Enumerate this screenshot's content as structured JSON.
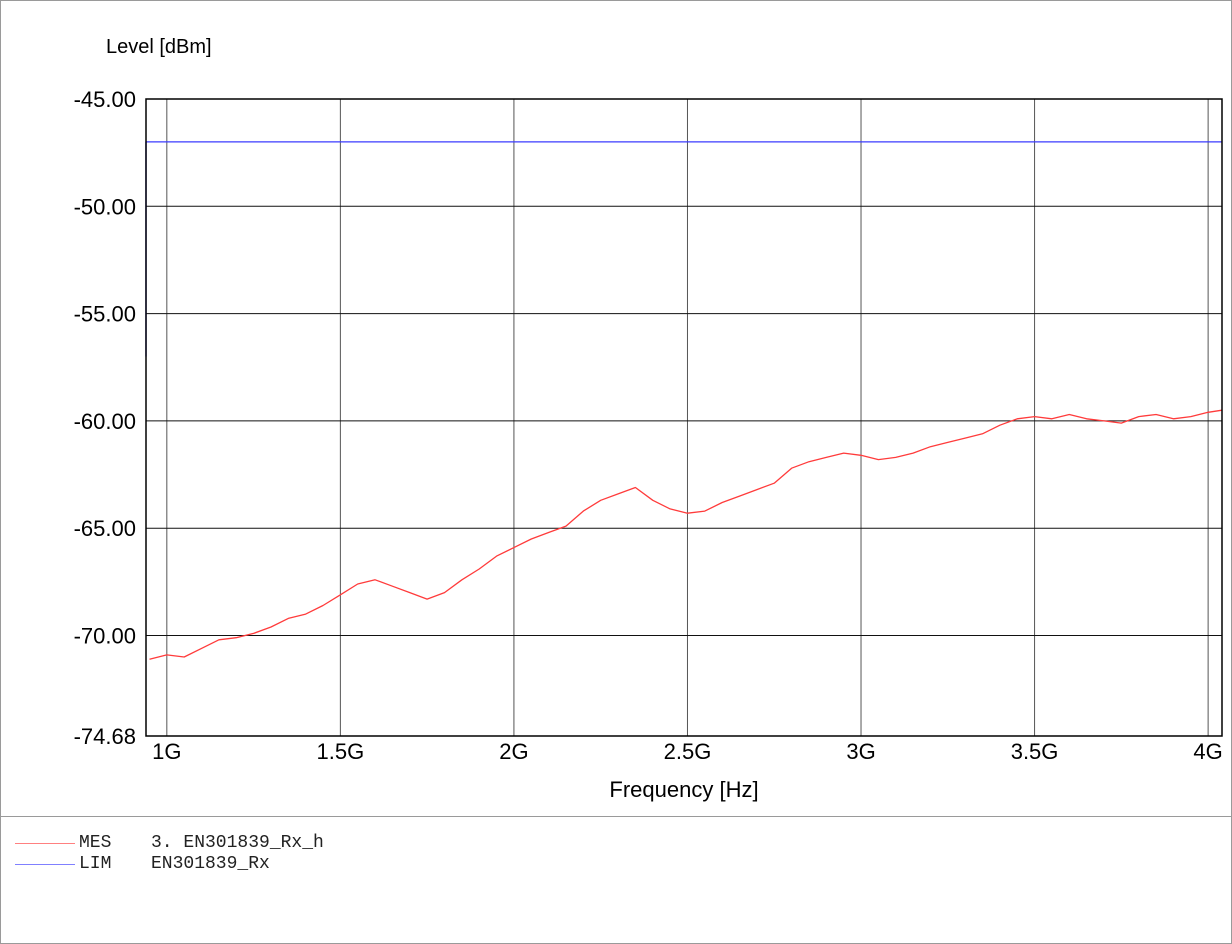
{
  "chart_data": {
    "type": "line",
    "xlabel": "Frequency [Hz]",
    "ylabel": "Level [dBm]",
    "xlim": [
      0.94,
      4.04
    ],
    "ylim": [
      -74.68,
      -45.0
    ],
    "x_ticks": [
      {
        "value": 1.0,
        "label": "1G"
      },
      {
        "value": 1.5,
        "label": "1.5G"
      },
      {
        "value": 2.0,
        "label": "2G"
      },
      {
        "value": 2.5,
        "label": "2.5G"
      },
      {
        "value": 3.0,
        "label": "3G"
      },
      {
        "value": 3.5,
        "label": "3.5G"
      },
      {
        "value": 4.0,
        "label": "4G"
      }
    ],
    "y_ticks": [
      {
        "value": -45.0,
        "label": "-45.00"
      },
      {
        "value": -50.0,
        "label": "-50.00"
      },
      {
        "value": -55.0,
        "label": "-55.00"
      },
      {
        "value": -60.0,
        "label": "-60.00"
      },
      {
        "value": -65.0,
        "label": "-65.00"
      },
      {
        "value": -70.0,
        "label": "-70.00"
      },
      {
        "value": -74.68,
        "label": "-74.68"
      }
    ],
    "grid": true,
    "legend": "bottom-left",
    "series": [
      {
        "name": "MES",
        "label": "3. EN301839_Rx_h",
        "color": "#ff3b3b",
        "x": [
          0.95,
          1.0,
          1.05,
          1.1,
          1.15,
          1.2,
          1.25,
          1.3,
          1.35,
          1.4,
          1.45,
          1.5,
          1.55,
          1.6,
          1.65,
          1.7,
          1.75,
          1.8,
          1.85,
          1.9,
          1.95,
          2.0,
          2.05,
          2.1,
          2.15,
          2.2,
          2.25,
          2.3,
          2.35,
          2.4,
          2.45,
          2.5,
          2.55,
          2.6,
          2.65,
          2.7,
          2.75,
          2.8,
          2.85,
          2.9,
          2.95,
          3.0,
          3.05,
          3.1,
          3.15,
          3.2,
          3.25,
          3.3,
          3.35,
          3.4,
          3.45,
          3.5,
          3.55,
          3.6,
          3.65,
          3.7,
          3.75,
          3.8,
          3.85,
          3.9,
          3.95,
          4.0,
          4.04
        ],
        "y": [
          -71.1,
          -70.9,
          -71.0,
          -70.6,
          -70.2,
          -70.1,
          -69.9,
          -69.6,
          -69.2,
          -69.0,
          -68.6,
          -68.1,
          -67.6,
          -67.4,
          -67.7,
          -68.0,
          -68.3,
          -68.0,
          -67.4,
          -66.9,
          -66.3,
          -65.9,
          -65.5,
          -65.2,
          -64.9,
          -64.2,
          -63.7,
          -63.4,
          -63.1,
          -63.7,
          -64.1,
          -64.3,
          -64.2,
          -63.8,
          -63.5,
          -63.2,
          -62.9,
          -62.2,
          -61.9,
          -61.7,
          -61.5,
          -61.6,
          -61.8,
          -61.7,
          -61.5,
          -61.2,
          -61.0,
          -60.8,
          -60.6,
          -60.2,
          -59.9,
          -59.8,
          -59.9,
          -59.7,
          -59.9,
          -60.0,
          -60.1,
          -59.8,
          -59.7,
          -59.9,
          -59.8,
          -59.6,
          -59.5
        ]
      },
      {
        "name": "LIM",
        "label": "EN301839_Rx",
        "color": "#3b3bff",
        "x": [
          0.94,
          0.94,
          0.95,
          4.04
        ],
        "y": [
          -57.0,
          -47.0,
          -47.0,
          -47.0
        ]
      }
    ]
  }
}
